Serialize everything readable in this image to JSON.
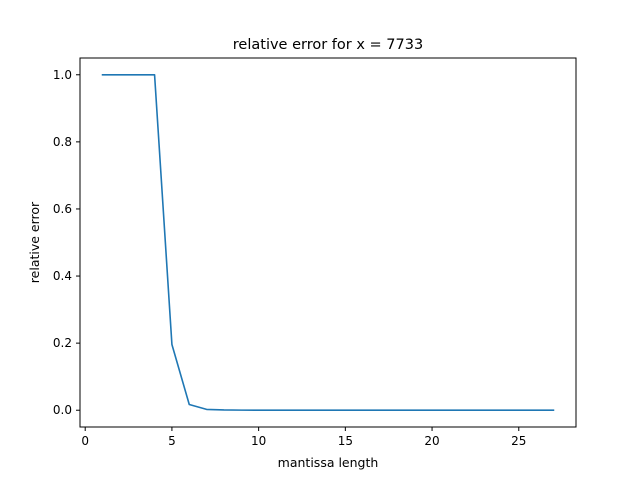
{
  "chart_data": {
    "type": "line",
    "title": "relative error for x = 7733",
    "xlabel": "mantissa length",
    "ylabel": "relative error",
    "xlim": [
      -0.3,
      28.3
    ],
    "ylim": [
      -0.05,
      1.05
    ],
    "xticks": [
      0,
      5,
      10,
      15,
      20,
      25
    ],
    "yticks": [
      0.0,
      0.2,
      0.4,
      0.6,
      0.8,
      1.0
    ],
    "xtick_labels": [
      "0",
      "5",
      "10",
      "15",
      "20",
      "25"
    ],
    "ytick_labels": [
      "0.0",
      "0.2",
      "0.4",
      "0.6",
      "0.8",
      "1.0"
    ],
    "grid": false,
    "series_color": "#1f77b4",
    "series": [
      {
        "x": [
          1,
          2,
          3,
          4,
          5,
          6,
          7,
          8,
          9,
          10,
          11,
          12,
          13,
          14,
          15,
          16,
          17,
          18,
          19,
          20,
          21,
          22,
          23,
          24,
          25,
          26,
          27
        ],
        "y": [
          1.0,
          1.0,
          1.0,
          1.0,
          0.196,
          0.017,
          0.0025,
          0.0008,
          0.0003,
          0.0001,
          5e-05,
          2e-05,
          1e-05,
          0,
          0,
          0,
          0,
          0,
          0,
          0,
          0,
          0,
          0,
          0,
          0,
          0,
          0
        ]
      }
    ]
  }
}
